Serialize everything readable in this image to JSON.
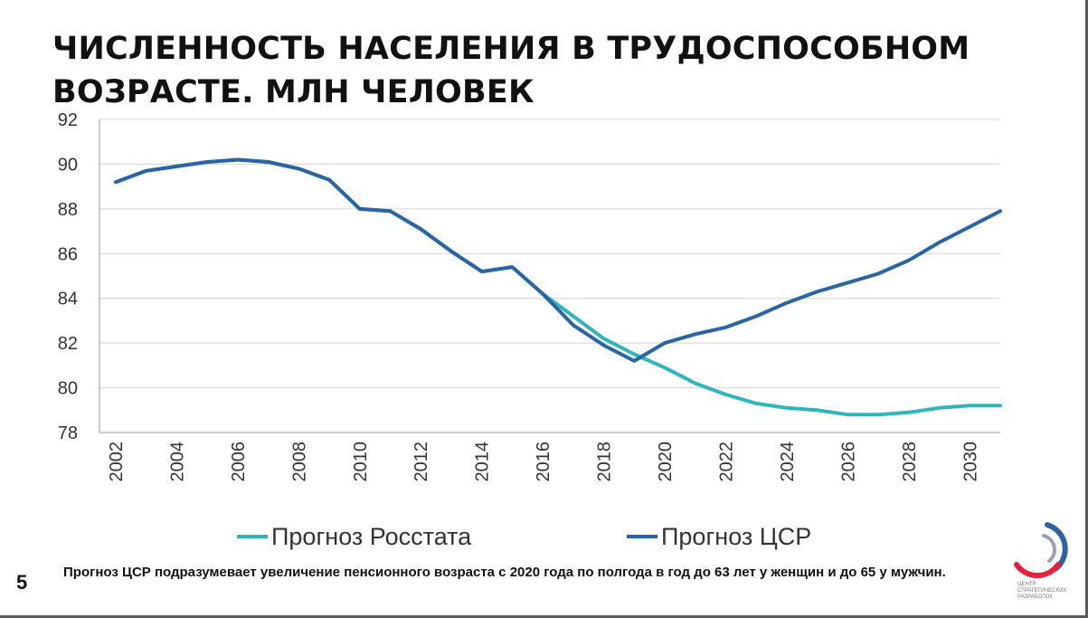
{
  "slide": {
    "title": "ЧИСЛЕННОСТЬ НАСЕЛЕНИЯ В ТРУДОСПОСОБНОМ ВОЗРАСТЕ. МЛН ЧЕЛОВЕК",
    "page_number": "5",
    "footnote": "Прогноз ЦСР подразумевает увеличение пенсионного возраста с 2020 года по полгода в год до 63 лет у женщин и до 65 у мужчин.",
    "logo": {
      "text": "ЦЕНТР СТРАТЕГИЧЕСКИХ РАЗРАБОТОК",
      "colors": [
        "#2f63a0",
        "#e8213a",
        "#9aa3ad"
      ]
    }
  },
  "chart_data": {
    "type": "line",
    "title": "ЧИСЛЕННОСТЬ НАСЕЛЕНИЯ В ТРУДОСПОСОБНОМ ВОЗРАСТЕ. МЛН ЧЕЛОВЕК",
    "xlabel": "",
    "ylabel": "",
    "ylim": [
      78,
      92
    ],
    "yticks": [
      78,
      80,
      82,
      84,
      86,
      88,
      90,
      92
    ],
    "xlim": [
      2002,
      2031
    ],
    "xticks": [
      2002,
      2004,
      2006,
      2008,
      2010,
      2012,
      2014,
      2016,
      2018,
      2020,
      2022,
      2024,
      2026,
      2028,
      2030
    ],
    "grid": "horizontal",
    "legend_position": "bottom",
    "series": [
      {
        "name": "Прогноз Росстата",
        "color": "#2fb5bd",
        "x": [
          2002,
          2003,
          2004,
          2005,
          2006,
          2007,
          2008,
          2009,
          2010,
          2011,
          2012,
          2013,
          2014,
          2015,
          2016,
          2017,
          2018,
          2019,
          2020,
          2021,
          2022,
          2023,
          2024,
          2025,
          2026,
          2027,
          2028,
          2029,
          2030,
          2031
        ],
        "values": [
          89.2,
          89.7,
          89.9,
          90.1,
          90.2,
          90.1,
          89.8,
          89.3,
          88.0,
          87.9,
          87.1,
          86.1,
          85.2,
          85.4,
          84.2,
          83.2,
          82.2,
          81.5,
          80.9,
          80.2,
          79.7,
          79.3,
          79.1,
          79.0,
          78.8,
          78.8,
          78.9,
          79.1,
          79.2,
          79.2
        ]
      },
      {
        "name": "Прогноз ЦСР",
        "color": "#2b64a2",
        "x": [
          2002,
          2003,
          2004,
          2005,
          2006,
          2007,
          2008,
          2009,
          2010,
          2011,
          2012,
          2013,
          2014,
          2015,
          2016,
          2017,
          2018,
          2019,
          2020,
          2021,
          2022,
          2023,
          2024,
          2025,
          2026,
          2027,
          2028,
          2029,
          2030,
          2031
        ],
        "values": [
          89.2,
          89.7,
          89.9,
          90.1,
          90.2,
          90.1,
          89.8,
          89.3,
          88.0,
          87.9,
          87.1,
          86.1,
          85.2,
          85.4,
          84.2,
          82.8,
          81.9,
          81.2,
          82.0,
          82.4,
          82.7,
          83.2,
          83.8,
          84.3,
          84.7,
          85.1,
          85.7,
          86.5,
          87.2,
          87.9
        ]
      }
    ]
  }
}
